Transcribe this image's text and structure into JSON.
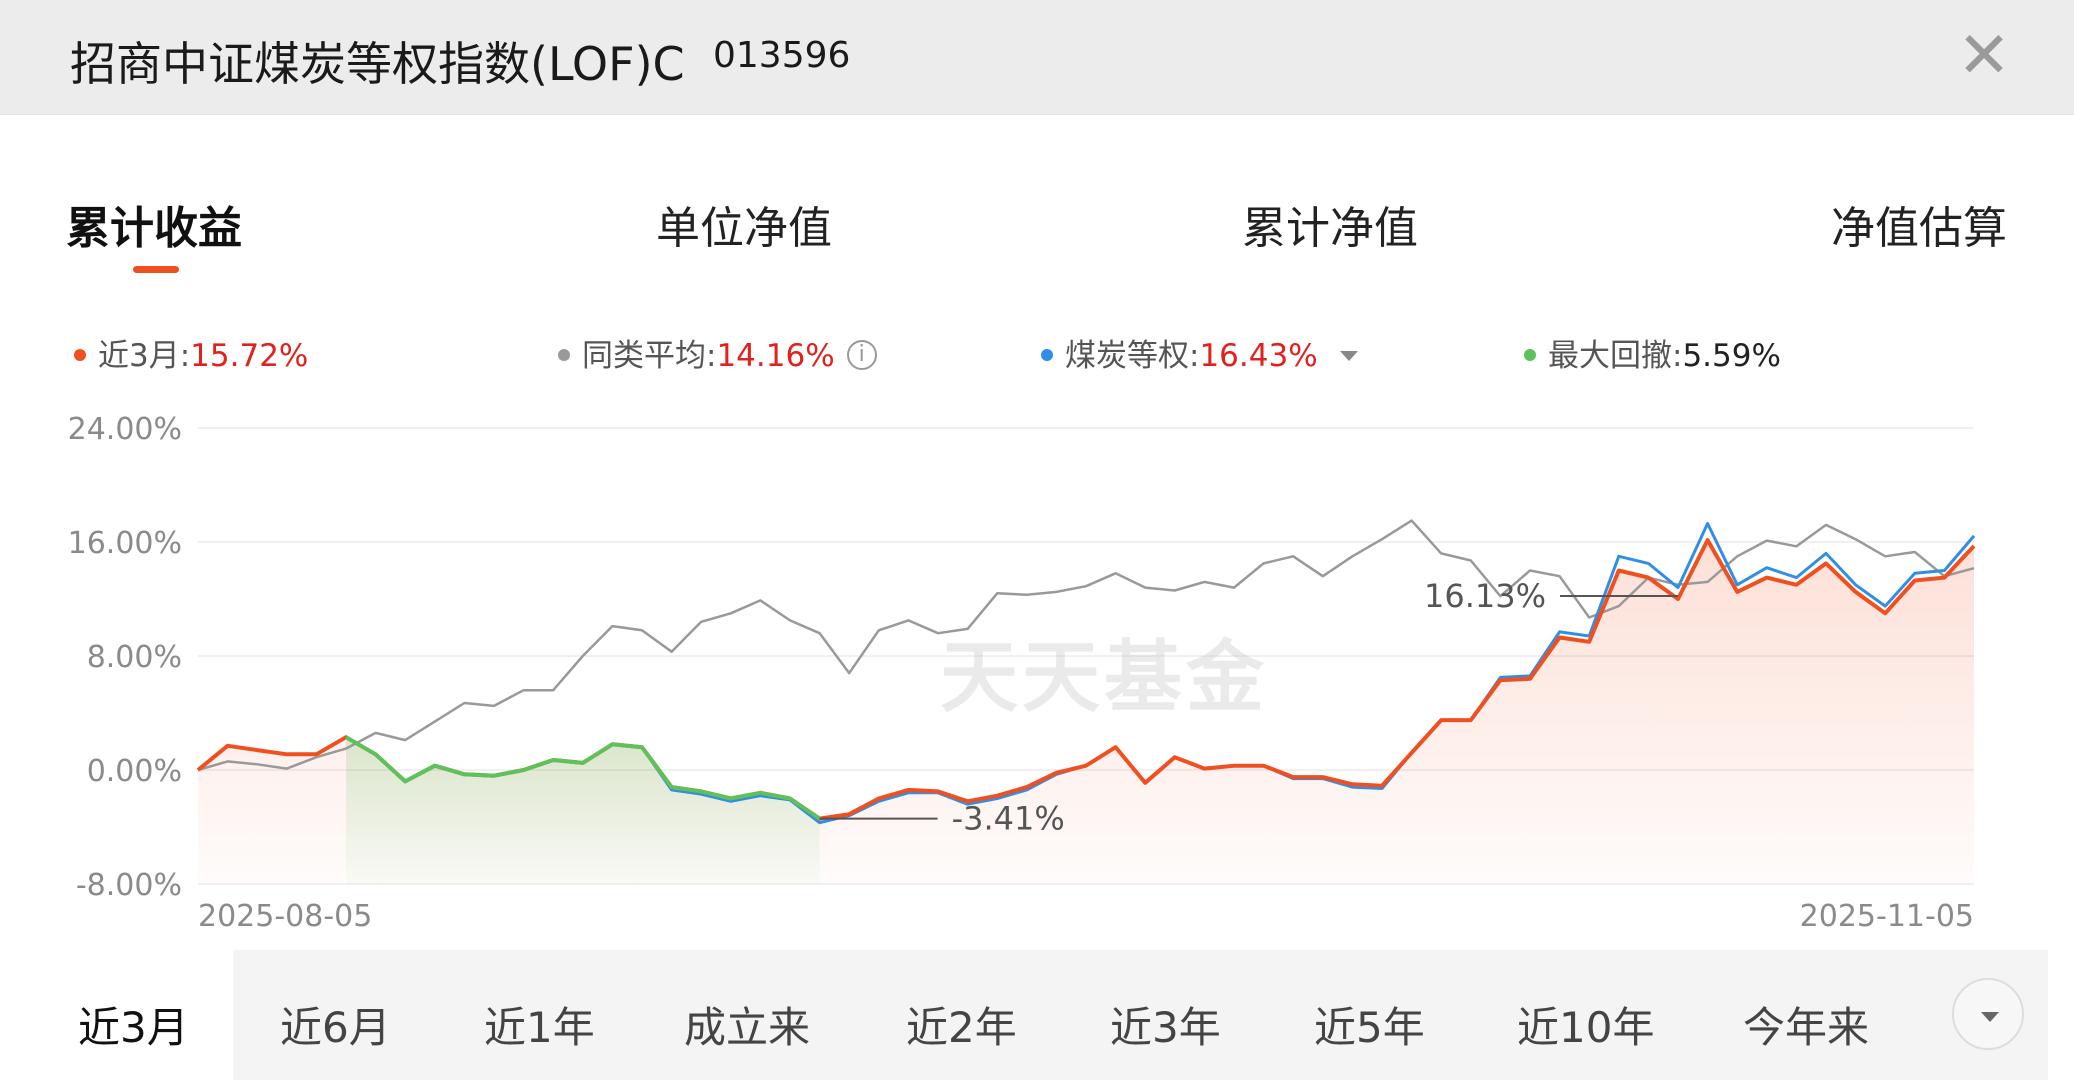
{
  "header": {
    "title": "招商中证煤炭等权指数(LOF)C",
    "code": "013596",
    "close_icon": "close-icon"
  },
  "tabs": [
    {
      "label": "累计收益",
      "active": true
    },
    {
      "label": "单位净值",
      "active": false
    },
    {
      "label": "累计净值",
      "active": false
    },
    {
      "label": "净值估算",
      "active": false
    }
  ],
  "legend": {
    "fund": {
      "label": "近3月:",
      "value": "15.72%",
      "color": "#f0501f"
    },
    "peer": {
      "label": "同类平均:",
      "value": "14.16%",
      "color": "#999999",
      "icon": "info-icon"
    },
    "index": {
      "label": "煤炭等权:",
      "value": "16.43%",
      "color": "#2f8fe8",
      "icon": "caret-down-icon"
    },
    "drawdown": {
      "label": "最大回撤:",
      "value": "5.59%",
      "color": "#5cc25a"
    }
  },
  "watermark": "天天基金",
  "chart_data": {
    "type": "line",
    "ylim": [
      -8,
      24
    ],
    "yticks": [
      "24.00%",
      "16.00%",
      "8.00%",
      "0.00%",
      "-8.00%"
    ],
    "ytick_values": [
      24,
      16,
      8,
      0,
      -8
    ],
    "x_start_label": "2025-08-05",
    "x_end_label": "2025-11-05",
    "annotations": [
      {
        "text": "16.13%",
        "series": "fund",
        "index": 50
      },
      {
        "text": "-3.41%",
        "series": "fund",
        "index": 21
      }
    ],
    "drawdown_range": [
      5,
      21
    ],
    "series": [
      {
        "name": "fund",
        "color": "#f0501f",
        "values": [
          0.0,
          1.7,
          1.4,
          1.1,
          1.1,
          2.3,
          1.1,
          -0.8,
          0.3,
          -0.3,
          -0.4,
          0.0,
          0.7,
          0.5,
          1.8,
          1.6,
          -1.2,
          -1.5,
          -2.0,
          -1.6,
          -2.0,
          -3.41,
          -3.1,
          -2.0,
          -1.4,
          -1.5,
          -2.2,
          -1.8,
          -1.2,
          -0.2,
          0.3,
          1.6,
          -0.9,
          0.9,
          0.1,
          0.3,
          0.3,
          -0.5,
          -0.5,
          -1.0,
          -1.1,
          1.2,
          3.5,
          3.5,
          6.3,
          6.4,
          9.3,
          9.0,
          14.0,
          13.5,
          12.0,
          16.13,
          12.5,
          13.5,
          13.0,
          14.5,
          12.5,
          11.0,
          13.3,
          13.5,
          15.72
        ]
      },
      {
        "name": "煤炭等权",
        "color": "#2f8fe8",
        "values": [
          0.0,
          1.7,
          1.4,
          1.1,
          1.1,
          2.3,
          1.1,
          -0.8,
          0.3,
          -0.3,
          -0.4,
          0.0,
          0.7,
          0.5,
          1.8,
          1.6,
          -1.4,
          -1.7,
          -2.2,
          -1.8,
          -2.1,
          -3.7,
          -3.2,
          -2.2,
          -1.6,
          -1.6,
          -2.4,
          -2.0,
          -1.4,
          -0.3,
          0.3,
          1.6,
          -0.9,
          0.9,
          0.1,
          0.3,
          0.3,
          -0.6,
          -0.6,
          -1.2,
          -1.3,
          1.2,
          3.5,
          3.5,
          6.5,
          6.6,
          9.7,
          9.4,
          15.0,
          14.5,
          12.8,
          17.3,
          13.0,
          14.2,
          13.5,
          15.2,
          13.0,
          11.5,
          13.8,
          14.0,
          16.43
        ]
      },
      {
        "name": "同类平均",
        "color": "#999999",
        "values": [
          0.0,
          0.6,
          0.4,
          0.1,
          0.9,
          1.5,
          2.6,
          2.1,
          3.4,
          4.7,
          4.5,
          5.6,
          5.6,
          8.0,
          10.1,
          9.8,
          8.3,
          10.4,
          11.0,
          11.9,
          10.5,
          9.6,
          6.8,
          9.8,
          10.5,
          9.6,
          9.9,
          12.4,
          12.3,
          12.5,
          12.9,
          13.8,
          12.8,
          12.6,
          13.2,
          12.8,
          14.5,
          15.0,
          13.6,
          15.0,
          16.2,
          17.5,
          15.2,
          14.7,
          12.2,
          14.0,
          13.6,
          10.7,
          11.5,
          13.5,
          13.0,
          13.2,
          15.0,
          16.1,
          15.7,
          17.2,
          16.2,
          15.0,
          15.3,
          13.6,
          14.16
        ]
      }
    ]
  },
  "range_buttons": [
    {
      "label": "近3月",
      "active": true
    },
    {
      "label": "近6月",
      "active": false
    },
    {
      "label": "近1年",
      "active": false
    },
    {
      "label": "成立来",
      "active": false
    },
    {
      "label": "近2年",
      "active": false
    },
    {
      "label": "近3年",
      "active": false
    },
    {
      "label": "近5年",
      "active": false
    },
    {
      "label": "近10年",
      "active": false
    },
    {
      "label": "今年来",
      "active": false
    }
  ]
}
